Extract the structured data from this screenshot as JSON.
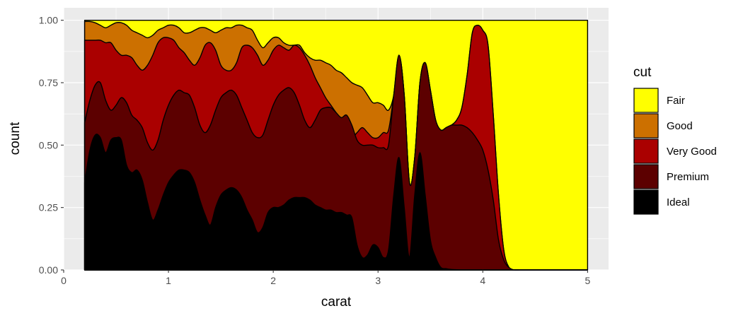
{
  "chart_data": {
    "type": "area",
    "subtype": "stacked-density-fill",
    "xlabel": "carat",
    "ylabel": "count",
    "xlim": [
      0,
      5.2
    ],
    "ylim": [
      0,
      1.05
    ],
    "x_ticks": [
      0,
      1,
      2,
      3,
      4,
      5
    ],
    "x_tick_labels": [
      "0",
      "1",
      "2",
      "3",
      "4",
      "5"
    ],
    "y_ticks": [
      0,
      0.25,
      0.5,
      0.75,
      1
    ],
    "y_tick_labels": [
      "0.00",
      "0.25",
      "0.50",
      "0.75",
      "1.00"
    ],
    "grid": true,
    "legend": {
      "title": "cut",
      "position": "right"
    },
    "stack_order_bottom_to_top": [
      "Ideal",
      "Premium",
      "Very Good",
      "Good",
      "Fair"
    ],
    "colors": {
      "Fair": "#FFFF00",
      "Good": "#CC7000",
      "Very Good": "#AA0000",
      "Premium": "#5C0000",
      "Ideal": "#000000",
      "panel": "#EBEBEB",
      "grid": "#FFFFFF"
    },
    "x": [
      0.2,
      0.25,
      0.3,
      0.35,
      0.4,
      0.45,
      0.5,
      0.55,
      0.6,
      0.65,
      0.7,
      0.75,
      0.8,
      0.85,
      0.9,
      0.95,
      1.0,
      1.05,
      1.1,
      1.15,
      1.2,
      1.25,
      1.3,
      1.35,
      1.4,
      1.45,
      1.5,
      1.55,
      1.6,
      1.65,
      1.7,
      1.75,
      1.8,
      1.85,
      1.9,
      1.95,
      2.0,
      2.05,
      2.1,
      2.15,
      2.2,
      2.25,
      2.3,
      2.35,
      2.4,
      2.45,
      2.5,
      2.55,
      2.6,
      2.65,
      2.7,
      2.75,
      2.8,
      2.85,
      2.9,
      2.95,
      3.0,
      3.05,
      3.1,
      3.15,
      3.2,
      3.25,
      3.3,
      3.35,
      3.4,
      3.45,
      3.5,
      3.55,
      3.6,
      3.65,
      3.7,
      3.75,
      3.8,
      3.85,
      3.9,
      3.95,
      4.0,
      4.05,
      4.1,
      4.15,
      4.2,
      4.25,
      4.3,
      4.35,
      4.4,
      4.5,
      4.6,
      4.7,
      4.8,
      4.9,
      5.0
    ],
    "cumulative": {
      "Ideal": [
        0.35,
        0.48,
        0.54,
        0.53,
        0.47,
        0.52,
        0.53,
        0.52,
        0.42,
        0.39,
        0.4,
        0.36,
        0.27,
        0.2,
        0.24,
        0.3,
        0.35,
        0.38,
        0.4,
        0.4,
        0.39,
        0.35,
        0.28,
        0.22,
        0.18,
        0.25,
        0.3,
        0.32,
        0.33,
        0.32,
        0.29,
        0.24,
        0.2,
        0.15,
        0.17,
        0.23,
        0.25,
        0.25,
        0.26,
        0.28,
        0.29,
        0.29,
        0.29,
        0.28,
        0.26,
        0.25,
        0.24,
        0.24,
        0.23,
        0.23,
        0.22,
        0.21,
        0.1,
        0.05,
        0.06,
        0.1,
        0.09,
        0.05,
        0.08,
        0.3,
        0.45,
        0.25,
        0.05,
        0.3,
        0.47,
        0.3,
        0.12,
        0.05,
        0.01,
        0.005,
        0.002,
        0.001,
        0,
        0,
        0,
        0,
        0,
        0,
        0,
        0,
        0,
        0,
        0,
        0,
        0,
        0,
        0,
        0,
        0,
        0,
        0
      ],
      "Premium": [
        0.59,
        0.68,
        0.74,
        0.75,
        0.68,
        0.64,
        0.66,
        0.69,
        0.67,
        0.62,
        0.6,
        0.57,
        0.51,
        0.48,
        0.52,
        0.6,
        0.66,
        0.7,
        0.72,
        0.71,
        0.7,
        0.65,
        0.58,
        0.55,
        0.58,
        0.64,
        0.69,
        0.71,
        0.72,
        0.7,
        0.65,
        0.6,
        0.55,
        0.53,
        0.54,
        0.6,
        0.66,
        0.7,
        0.72,
        0.73,
        0.71,
        0.66,
        0.6,
        0.57,
        0.6,
        0.64,
        0.65,
        0.65,
        0.63,
        0.61,
        0.62,
        0.58,
        0.52,
        0.5,
        0.5,
        0.5,
        0.49,
        0.49,
        0.5,
        0.7,
        0.86,
        0.7,
        0.35,
        0.45,
        0.75,
        0.83,
        0.72,
        0.6,
        0.56,
        0.57,
        0.58,
        0.58,
        0.58,
        0.57,
        0.55,
        0.52,
        0.48,
        0.4,
        0.28,
        0.12,
        0.04,
        0.01,
        0,
        0,
        0,
        0,
        0,
        0,
        0,
        0,
        0
      ],
      "VeryGood": [
        0.92,
        0.92,
        0.92,
        0.92,
        0.91,
        0.91,
        0.88,
        0.86,
        0.86,
        0.85,
        0.82,
        0.8,
        0.82,
        0.86,
        0.91,
        0.93,
        0.93,
        0.92,
        0.89,
        0.87,
        0.84,
        0.82,
        0.85,
        0.9,
        0.91,
        0.88,
        0.82,
        0.8,
        0.8,
        0.83,
        0.89,
        0.9,
        0.89,
        0.86,
        0.82,
        0.84,
        0.88,
        0.9,
        0.89,
        0.88,
        0.9,
        0.89,
        0.86,
        0.82,
        0.77,
        0.73,
        0.69,
        0.66,
        0.63,
        0.6,
        0.55,
        0.53,
        0.55,
        0.57,
        0.55,
        0.53,
        0.53,
        0.55,
        0.56,
        0.7,
        0.86,
        0.7,
        0.35,
        0.45,
        0.75,
        0.83,
        0.72,
        0.6,
        0.56,
        0.57,
        0.58,
        0.6,
        0.65,
        0.78,
        0.95,
        0.98,
        0.96,
        0.9,
        0.62,
        0.3,
        0.08,
        0.01,
        0,
        0,
        0,
        0,
        0,
        0,
        0,
        0,
        0
      ],
      "Good": [
        0.995,
        0.995,
        0.99,
        0.98,
        0.97,
        0.98,
        0.99,
        0.99,
        0.98,
        0.96,
        0.95,
        0.94,
        0.93,
        0.94,
        0.96,
        0.97,
        0.98,
        0.98,
        0.97,
        0.95,
        0.95,
        0.96,
        0.97,
        0.97,
        0.96,
        0.95,
        0.96,
        0.97,
        0.97,
        0.98,
        0.98,
        0.97,
        0.96,
        0.92,
        0.89,
        0.91,
        0.93,
        0.93,
        0.91,
        0.9,
        0.9,
        0.9,
        0.87,
        0.85,
        0.84,
        0.84,
        0.83,
        0.82,
        0.8,
        0.79,
        0.77,
        0.75,
        0.74,
        0.73,
        0.7,
        0.67,
        0.67,
        0.66,
        0.64,
        0.7,
        0.86,
        0.7,
        0.35,
        0.45,
        0.75,
        0.83,
        0.72,
        0.6,
        0.56,
        0.57,
        0.58,
        0.6,
        0.65,
        0.78,
        0.95,
        0.98,
        0.96,
        0.9,
        0.62,
        0.3,
        0.08,
        0.01,
        0,
        0,
        0,
        0,
        0,
        0,
        0,
        0,
        0
      ],
      "Fair": [
        1,
        1,
        1,
        1,
        1,
        1,
        1,
        1,
        1,
        1,
        1,
        1,
        1,
        1,
        1,
        1,
        1,
        1,
        1,
        1,
        1,
        1,
        1,
        1,
        1,
        1,
        1,
        1,
        1,
        1,
        1,
        1,
        1,
        1,
        1,
        1,
        1,
        1,
        1,
        1,
        1,
        1,
        1,
        1,
        1,
        1,
        1,
        1,
        1,
        1,
        1,
        1,
        1,
        1,
        1,
        1,
        1,
        1,
        1,
        1,
        1,
        1,
        1,
        1,
        1,
        1,
        1,
        1,
        1,
        1,
        1,
        1,
        1,
        1,
        1,
        1,
        1,
        1,
        1,
        1,
        1,
        1,
        1,
        1,
        1,
        1,
        1,
        1,
        1,
        1,
        1
      ]
    },
    "series": [
      {
        "name": "Fair",
        "key": "Fair"
      },
      {
        "name": "Good",
        "key": "Good"
      },
      {
        "name": "Very Good",
        "key": "VeryGood"
      },
      {
        "name": "Premium",
        "key": "Premium"
      },
      {
        "name": "Ideal",
        "key": "Ideal"
      }
    ]
  }
}
